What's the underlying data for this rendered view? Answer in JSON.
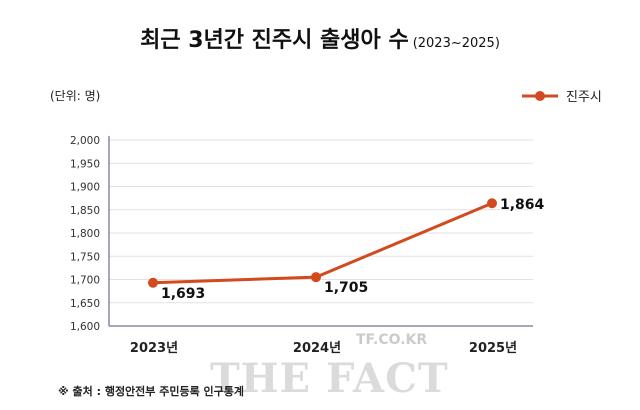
{
  "title": "최근 3년간 진주시 출생아 수",
  "subtitle": "(2023~2025)",
  "unit_label": "(단위: 명)",
  "footer": "※ 출처 : 행정안전부 주민등록 인구통계",
  "watermark": "THE FACT",
  "watermark_url": "TF.CO.KR",
  "chart_data": {
    "type": "line",
    "title": "최근 3년간 진주시 출생아 수 (2023~2025)",
    "categories": [
      "2023년",
      "2024년",
      "2025년"
    ],
    "series": [
      {
        "name": "진주시",
        "values": [
          1693,
          1705,
          1864
        ],
        "labels": [
          "1,693",
          "1,705",
          "1,864"
        ],
        "color": "#d24a1e"
      }
    ],
    "ylim": [
      1600,
      2000
    ],
    "yticks": [
      1600,
      1650,
      1700,
      1750,
      1800,
      1850,
      1900,
      1950,
      2000
    ],
    "ytick_labels": [
      "1,600",
      "1,650",
      "1,700",
      "1,750",
      "1,800",
      "1,850",
      "1,900",
      "1,950",
      "2,000"
    ],
    "grid": true,
    "legend": "top-right"
  }
}
